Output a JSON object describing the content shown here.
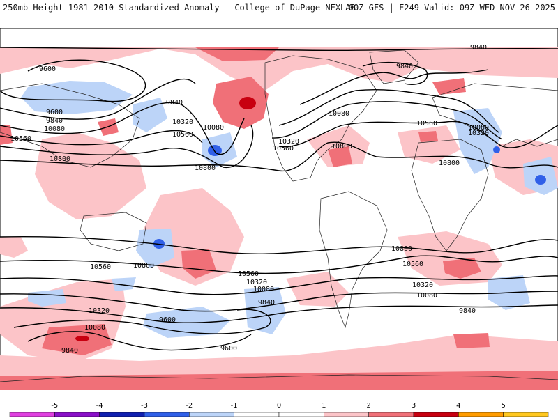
{
  "header": {
    "left": "250mb Height 1981–2010 Standardized Anomaly | College of DuPage NEXLAB",
    "right": "00Z GFS | F249 Valid: 09Z WED NOV 26 2025"
  },
  "colorbar": {
    "ticks": [
      "-5",
      "-4",
      "-3",
      "-2",
      "-1",
      "0",
      "1",
      "2",
      "3",
      "4",
      "5"
    ],
    "colors": [
      "#e040e0",
      "#8a10c8",
      "#1020b0",
      "#3060e8",
      "#bcd4f8",
      "#ffffff",
      "#ffffff",
      "#fcc4c8",
      "#f07078",
      "#c80010",
      "#ff9c00",
      "#ffc820"
    ]
  },
  "contour_labels": [
    {
      "text": "9840"
    },
    {
      "text": "9600"
    },
    {
      "text": "9840"
    },
    {
      "text": "9840"
    },
    {
      "text": "9600"
    },
    {
      "text": "9840"
    },
    {
      "text": "10080"
    },
    {
      "text": "10560"
    },
    {
      "text": "10320"
    },
    {
      "text": "10080"
    },
    {
      "text": "10560"
    },
    {
      "text": "10320"
    },
    {
      "text": "10560"
    },
    {
      "text": "10800"
    },
    {
      "text": "10800"
    },
    {
      "text": "10080"
    },
    {
      "text": "10560"
    },
    {
      "text": "10080"
    },
    {
      "text": "10320"
    },
    {
      "text": "10800"
    },
    {
      "text": "10800"
    },
    {
      "text": "10800"
    },
    {
      "text": "10560"
    },
    {
      "text": "10800"
    },
    {
      "text": "10560"
    },
    {
      "text": "10560"
    },
    {
      "text": "10320"
    },
    {
      "text": "10080"
    },
    {
      "text": "9840"
    },
    {
      "text": "10320"
    },
    {
      "text": "10080"
    },
    {
      "text": "9600"
    },
    {
      "text": "9840"
    },
    {
      "text": "9600"
    },
    {
      "text": "10320"
    },
    {
      "text": "10080"
    },
    {
      "text": "9840"
    },
    {
      "text": "10800"
    },
    {
      "text": "10560"
    },
    {
      "text": "10560"
    }
  ]
}
